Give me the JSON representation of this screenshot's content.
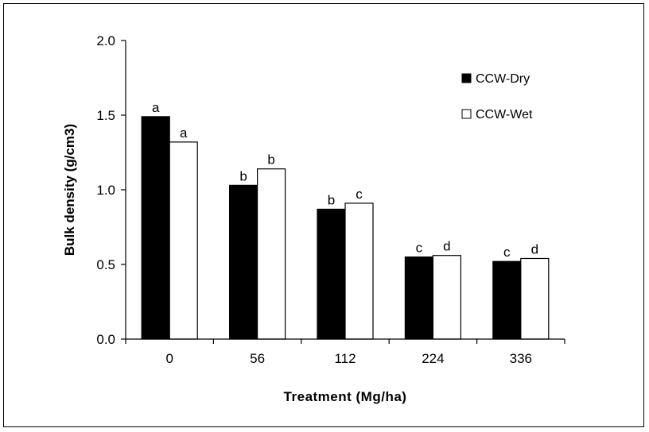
{
  "chart_data": {
    "type": "bar",
    "xlabel": "Treatment (Mg/ha)",
    "ylabel": "Bulk density (g/cm3)",
    "categories": [
      "0",
      "56",
      "112",
      "224",
      "336"
    ],
    "ylim": [
      0,
      2.0
    ],
    "yticks": [
      "0.0",
      "0.5",
      "1.0",
      "1.5",
      "2.0"
    ],
    "grid": false,
    "legend_position": "top-right",
    "series": [
      {
        "name": "CCW-Dry",
        "color": "#000000",
        "values": [
          1.49,
          1.03,
          0.87,
          0.55,
          0.52
        ],
        "labels": [
          "a",
          "b",
          "b",
          "c",
          "c"
        ]
      },
      {
        "name": "CCW-Wet",
        "color": "#ffffff",
        "values": [
          1.32,
          1.14,
          0.91,
          0.56,
          0.54
        ],
        "labels": [
          "a",
          "b",
          "c",
          "d",
          "d"
        ]
      }
    ]
  }
}
